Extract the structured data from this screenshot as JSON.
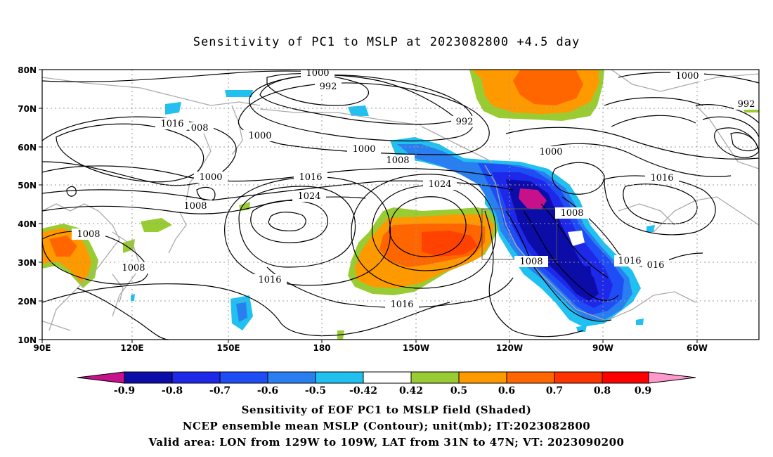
{
  "title": "Sensitivity of PC1 to MSLP at 2023082800 +4.5 day",
  "map": {
    "lat_labels": [
      "80N",
      "70N",
      "60N",
      "50N",
      "40N",
      "30N",
      "20N",
      "10N"
    ],
    "lon_labels": [
      "90E",
      "120E",
      "150E",
      "180",
      "150W",
      "120W",
      "90W",
      "60W"
    ],
    "contour_labels": [
      {
        "id": "c1000a",
        "text": "1000"
      },
      {
        "id": "c992a",
        "text": "992"
      },
      {
        "id": "c992b",
        "text": "992"
      },
      {
        "id": "c1000b",
        "text": "1000"
      },
      {
        "id": "c1008a",
        "text": "1008"
      },
      {
        "id": "c1000c",
        "text": "1000"
      },
      {
        "id": "c1016a",
        "text": "1016"
      },
      {
        "id": "c1008b",
        "text": "1008"
      },
      {
        "id": "c1000d",
        "text": "1000"
      },
      {
        "id": "c1016b",
        "text": "1016"
      },
      {
        "id": "c1024a",
        "text": "1024"
      },
      {
        "id": "c1024b",
        "text": "1024"
      },
      {
        "id": "c1008c",
        "text": "1008"
      },
      {
        "id": "c1008d",
        "text": "1008"
      },
      {
        "id": "c1008e",
        "text": "1008"
      },
      {
        "id": "c1016c",
        "text": "1016"
      },
      {
        "id": "c1016d",
        "text": "1016"
      },
      {
        "id": "c1008f",
        "text": "1008"
      },
      {
        "id": "c1016e",
        "text": "1016"
      },
      {
        "id": "c016f",
        "text": "016"
      },
      {
        "id": "c1000e",
        "text": "1000"
      },
      {
        "id": "c992c",
        "text": "992"
      },
      {
        "id": "c1016g",
        "text": "1016"
      },
      {
        "id": "c1000f",
        "text": "1000"
      }
    ],
    "valid_area": {
      "lon_from": "129W",
      "lon_to": "109W",
      "lat_from": "31N",
      "lat_to": "47N"
    }
  },
  "colorbar": {
    "labels": [
      "-0.9",
      "-0.8",
      "-0.7",
      "-0.6",
      "-0.5",
      "-0.42",
      "0.42",
      "0.5",
      "0.6",
      "0.7",
      "0.8",
      "0.9"
    ],
    "colors": {
      "magenta_end": "#c7118b",
      "c1": "#0c0ca8",
      "c2": "#1e28e8",
      "c3": "#1e4df5",
      "c4": "#2a7ff0",
      "c5": "#20c0f0",
      "white": "#ffffff",
      "green": "#99cc33",
      "c_orange1": "#ff9900",
      "c_orange2": "#ff6600",
      "c_red1": "#ff3300",
      "c_red2": "#ff0000",
      "pink_end": "#ff99cc"
    }
  },
  "captions": {
    "line1": "Sensitivity of EOF PC1 to MSLP field (Shaded)",
    "line2": "NCEP ensemble mean MSLP (Contour); unit(mb); IT:2023082800",
    "line3": "Valid area: LON from 129W to 109W, LAT from 31N to 47N; VT: 2023090200"
  }
}
